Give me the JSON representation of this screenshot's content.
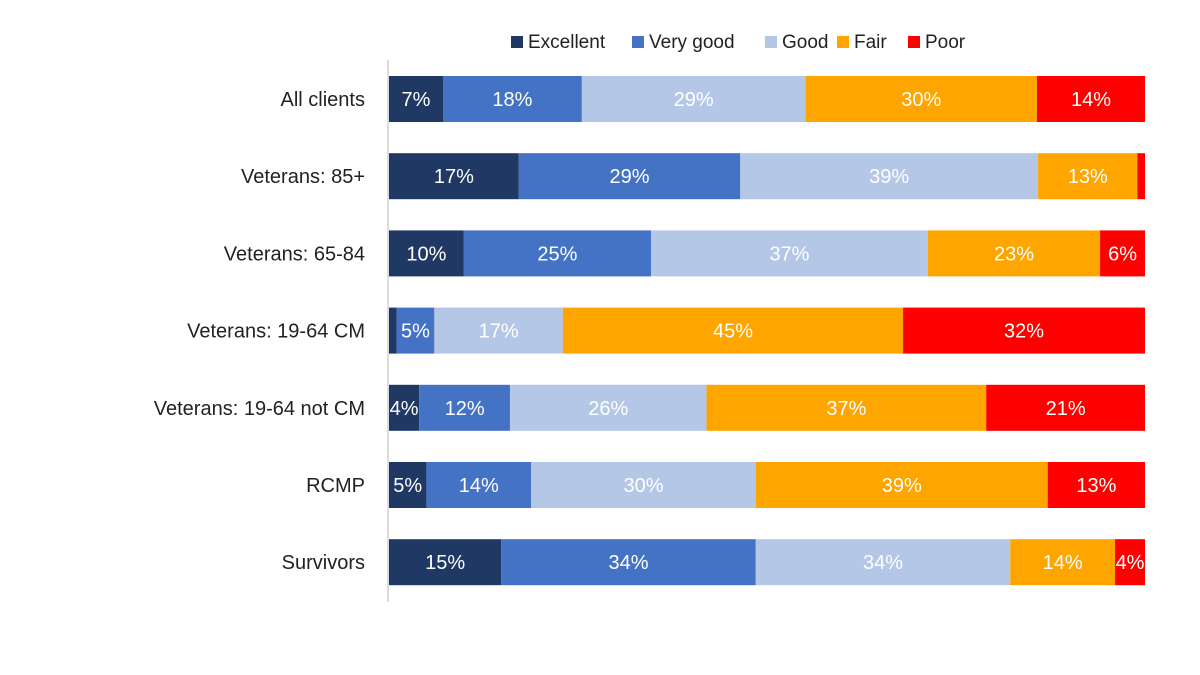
{
  "chart_data": {
    "type": "bar",
    "orientation": "horizontal",
    "stacked": "100%",
    "title": "",
    "xlabel": "",
    "ylabel": "",
    "legend": "top",
    "grid": false,
    "categories": [
      "All clients",
      "Veterans: 85+",
      "Veterans: 65-84",
      "Veterans: 19-64 CM",
      "Veterans: 19-64 not CM",
      "RCMP",
      "Survivors"
    ],
    "series": [
      {
        "name": "Excellent",
        "color": "#1F3864",
        "values": [
          7,
          17,
          10,
          1,
          4,
          5,
          15
        ],
        "labels": [
          "7%",
          "17%",
          "10%",
          "",
          "4%",
          "5%",
          "15%"
        ]
      },
      {
        "name": "Very good",
        "color": "#4472C4",
        "values": [
          18,
          29,
          25,
          5,
          12,
          14,
          34
        ],
        "labels": [
          "18%",
          "29%",
          "25%",
          "5%",
          "12%",
          "14%",
          "34%"
        ]
      },
      {
        "name": "Good",
        "color": "#B4C7E7",
        "values": [
          29,
          39,
          37,
          17,
          26,
          30,
          34
        ],
        "labels": [
          "29%",
          "39%",
          "37%",
          "17%",
          "26%",
          "30%",
          "34%"
        ]
      },
      {
        "name": "Fair",
        "color": "#FFA500",
        "values": [
          30,
          13,
          23,
          45,
          37,
          39,
          14
        ],
        "labels": [
          "30%",
          "13%",
          "23%",
          "45%",
          "37%",
          "39%",
          "14%"
        ]
      },
      {
        "name": "Poor",
        "color": "#FF0000",
        "values": [
          14,
          1,
          6,
          32,
          21,
          13,
          4
        ],
        "labels": [
          "14%",
          "",
          "6%",
          "32%",
          "21%",
          "13%",
          "4%"
        ]
      }
    ]
  }
}
